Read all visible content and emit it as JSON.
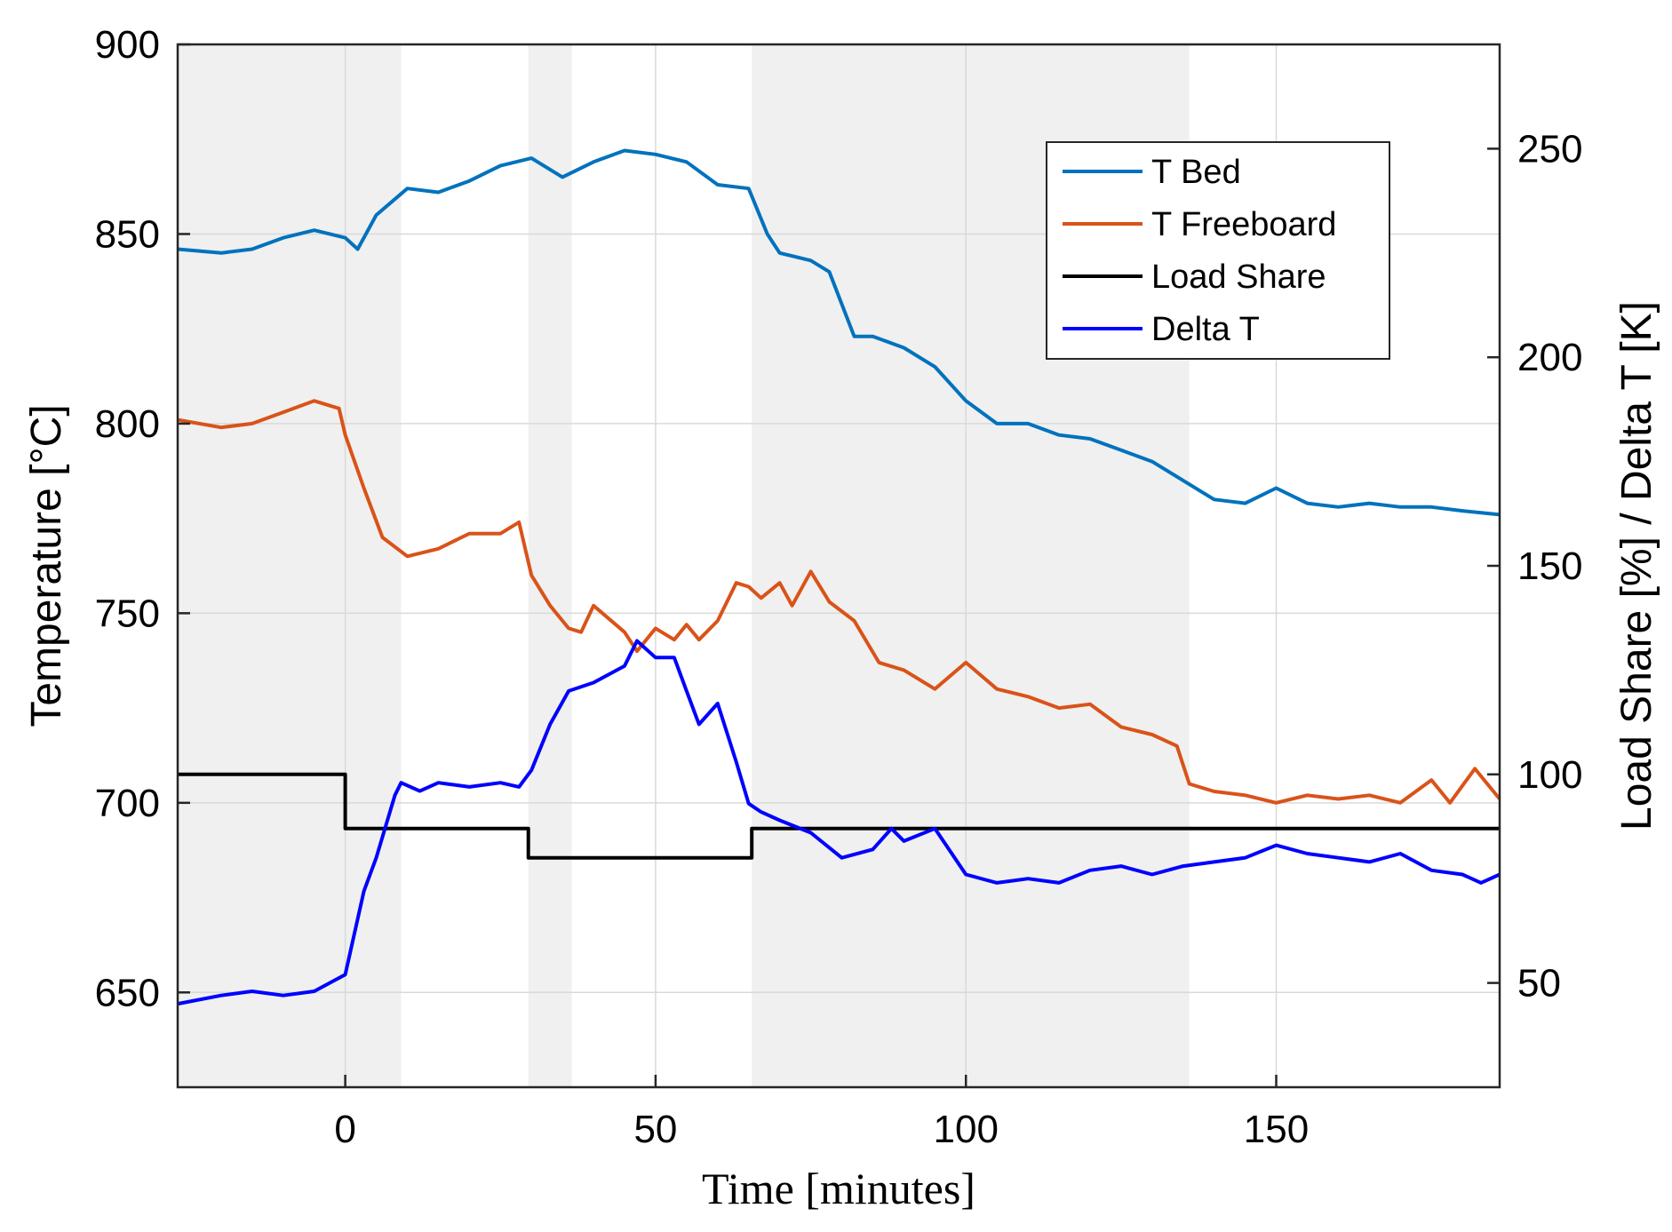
{
  "chart_data": {
    "type": "line",
    "title": "",
    "xlabel": "Time [minutes]",
    "ylabel_left": "Temperature [°C]",
    "ylabel_right": "Load Share [%] / Delta T [K]",
    "xlim": [
      -27,
      186
    ],
    "ylim_left": [
      625,
      900
    ],
    "ylim_right": [
      25,
      275
    ],
    "x_ticks": [
      0,
      50,
      100,
      150
    ],
    "y_ticks_left": [
      650,
      700,
      750,
      800,
      850,
      900
    ],
    "y_ticks_right": [
      50,
      100,
      150,
      200,
      250
    ],
    "grid": true,
    "legend_position": "top-right",
    "shaded_intervals": [
      [
        -27,
        9
      ],
      [
        29.5,
        36.5
      ],
      [
        65.5,
        136
      ]
    ],
    "series": [
      {
        "name": "T Bed",
        "axis": "left",
        "color": "#0072BD",
        "x": [
          -27,
          -20,
          -15,
          -10,
          -5,
          0,
          2,
          5,
          10,
          15,
          20,
          25,
          30,
          35,
          40,
          45,
          50,
          55,
          60,
          65,
          68,
          70,
          75,
          78,
          82,
          85,
          90,
          95,
          100,
          105,
          110,
          115,
          120,
          125,
          130,
          135,
          140,
          145,
          150,
          155,
          160,
          165,
          170,
          175,
          180,
          186
        ],
        "y": [
          846,
          845,
          846,
          849,
          851,
          849,
          846,
          855,
          862,
          861,
          864,
          868,
          870,
          865,
          869,
          872,
          871,
          869,
          863,
          862,
          850,
          845,
          843,
          840,
          823,
          823,
          820,
          815,
          806,
          800,
          800,
          797,
          796,
          793,
          790,
          785,
          780,
          779,
          783,
          779,
          778,
          779,
          778,
          778,
          777,
          776
        ]
      },
      {
        "name": "T Freeboard",
        "axis": "left",
        "color": "#D95319",
        "x": [
          -27,
          -20,
          -15,
          -10,
          -5,
          -1,
          0,
          3,
          6,
          10,
          15,
          20,
          25,
          28,
          30,
          33,
          36,
          38,
          40,
          45,
          47,
          50,
          53,
          55,
          57,
          60,
          63,
          65,
          67,
          70,
          72,
          75,
          78,
          82,
          86,
          90,
          95,
          100,
          105,
          110,
          115,
          120,
          125,
          130,
          134,
          136,
          140,
          145,
          150,
          155,
          160,
          165,
          170,
          175,
          178,
          182,
          186
        ],
        "y": [
          801,
          799,
          800,
          803,
          806,
          804,
          797,
          783,
          770,
          765,
          767,
          771,
          771,
          774,
          760,
          752,
          746,
          745,
          752,
          745,
          740,
          746,
          743,
          747,
          743,
          748,
          758,
          757,
          754,
          758,
          752,
          761,
          753,
          748,
          737,
          735,
          730,
          737,
          730,
          728,
          725,
          726,
          720,
          718,
          715,
          705,
          703,
          702,
          700,
          702,
          701,
          702,
          700,
          706,
          700,
          709,
          701
        ]
      },
      {
        "name": "Load Share",
        "axis": "right",
        "color": "#000000",
        "step": true,
        "x": [
          -27,
          0,
          29.5,
          65.5,
          186
        ],
        "y": [
          100,
          87,
          80,
          87,
          87
        ]
      },
      {
        "name": "Delta T",
        "axis": "right",
        "color": "#0000FF",
        "x": [
          -27,
          -20,
          -15,
          -10,
          -5,
          0,
          3,
          5,
          8,
          9,
          12,
          15,
          20,
          25,
          28,
          30,
          33,
          36,
          40,
          45,
          47,
          50,
          53,
          55,
          57,
          60,
          63,
          65,
          67,
          70,
          75,
          80,
          85,
          88,
          90,
          95,
          100,
          105,
          110,
          115,
          120,
          125,
          130,
          135,
          140,
          145,
          150,
          155,
          160,
          165,
          170,
          175,
          180,
          183,
          186
        ],
        "y": [
          45,
          47,
          48,
          47,
          48,
          52,
          72,
          80,
          95,
          98,
          96,
          98,
          97,
          98,
          97,
          101,
          112,
          120,
          122,
          126,
          132,
          128,
          128,
          120,
          112,
          117,
          103,
          93,
          91,
          89,
          86,
          80,
          82,
          87,
          84,
          87,
          76,
          74,
          75,
          74,
          77,
          78,
          76,
          78,
          79,
          80,
          83,
          81,
          80,
          79,
          81,
          77,
          76,
          74,
          76
        ]
      }
    ]
  }
}
